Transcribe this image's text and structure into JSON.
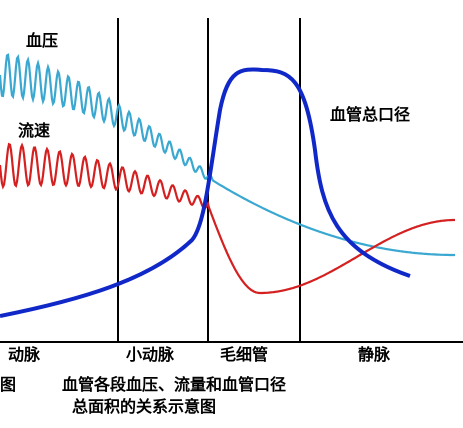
{
  "labels": {
    "pressure": "血压",
    "velocity": "流速",
    "total_area": "血管总口径"
  },
  "segments": [
    "动脉",
    "小动脉",
    "毛细管",
    "静脉"
  ],
  "caption": {
    "prefix": "图",
    "line1": "血管各段血压、流量和血管口径",
    "line2": "总面积的关系示意图"
  }
}
